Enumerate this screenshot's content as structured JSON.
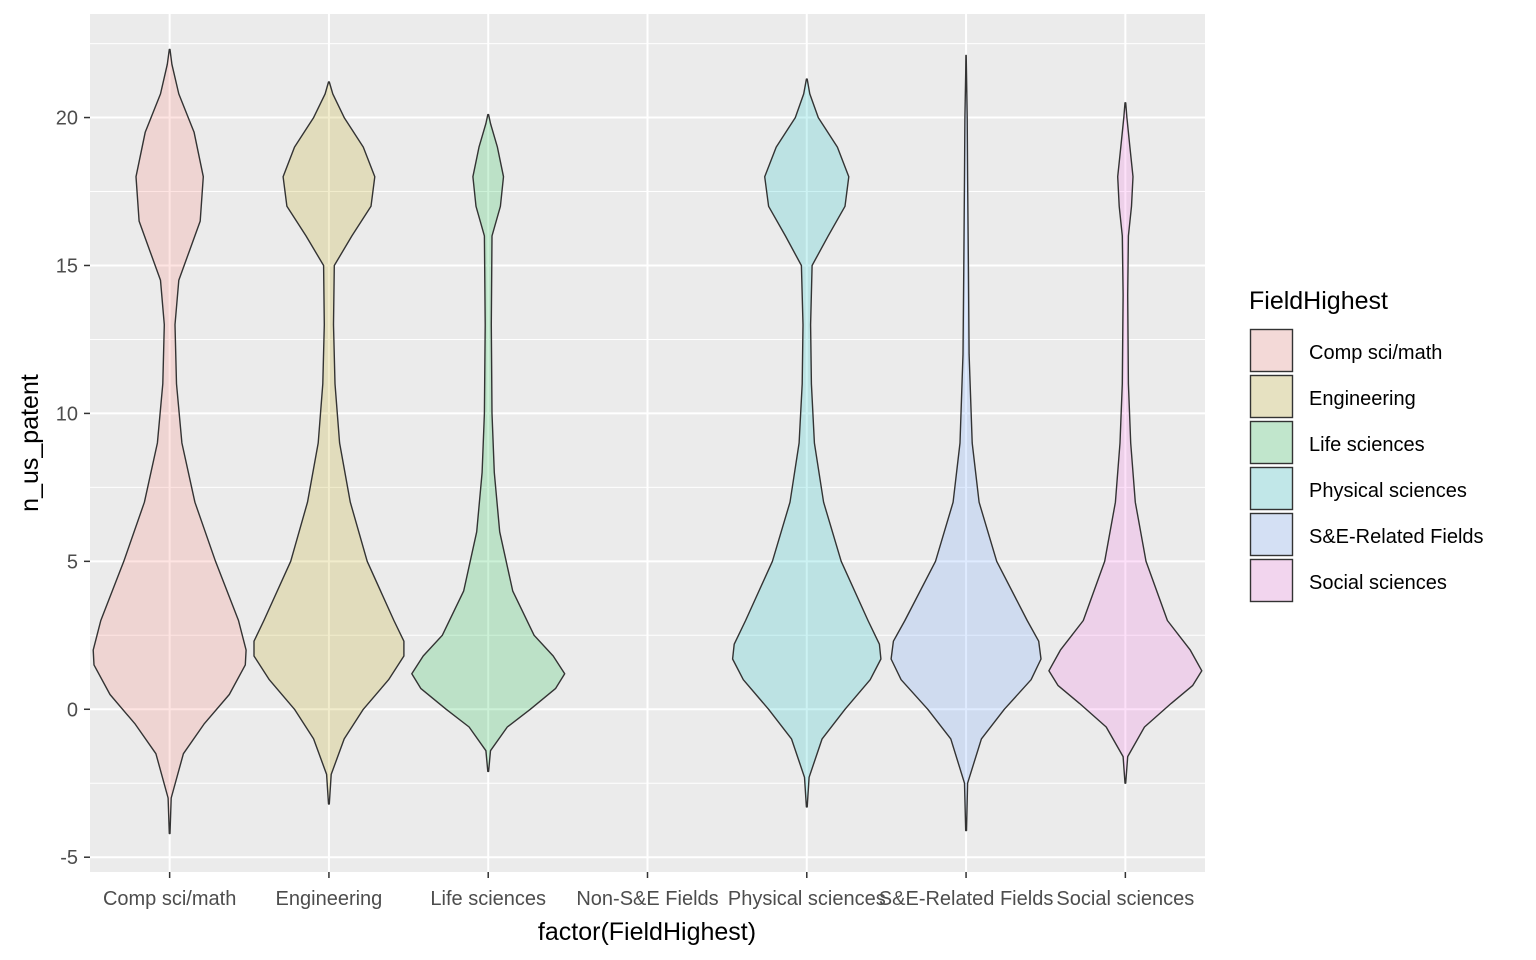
{
  "chart_data": {
    "type": "violin",
    "xlabel": "factor(FieldHighest)",
    "ylabel": "n_us_patent",
    "categories": [
      "Comp sci/math",
      "Engineering",
      "Life sciences",
      "Non-S&E Fields",
      "Physical sciences",
      "S&E-Related Fields",
      "Social sciences"
    ],
    "y_ticks": [
      -5,
      0,
      5,
      10,
      15,
      20
    ],
    "ylim": [
      -5.5,
      23.5
    ],
    "grid": true,
    "legend": {
      "title": "FieldHighest",
      "placement": "right",
      "entries": [
        "Comp sci/math",
        "Engineering",
        "Life sciences",
        "Physical sciences",
        "S&E-Related Fields",
        "Social sciences"
      ]
    },
    "series": [
      {
        "category": "Comp sci/math",
        "color": "#F8766D",
        "range": [
          -4.2,
          22.3
        ],
        "density": [
          [
            -4.2,
            0.005
          ],
          [
            -3,
            0.02
          ],
          [
            -1.5,
            0.18
          ],
          [
            -0.5,
            0.45
          ],
          [
            0.5,
            0.78
          ],
          [
            1.5,
            0.99
          ],
          [
            2,
            1.0
          ],
          [
            3,
            0.9
          ],
          [
            5,
            0.6
          ],
          [
            7,
            0.33
          ],
          [
            9,
            0.16
          ],
          [
            11,
            0.09
          ],
          [
            13,
            0.07
          ],
          [
            14.5,
            0.12
          ],
          [
            15.5,
            0.26
          ],
          [
            16.5,
            0.4
          ],
          [
            18,
            0.44
          ],
          [
            19.5,
            0.32
          ],
          [
            20.8,
            0.12
          ],
          [
            21.8,
            0.03
          ],
          [
            22.3,
            0.005
          ]
        ]
      },
      {
        "category": "Engineering",
        "color": "#B79F00",
        "range": [
          -3.2,
          21.2
        ],
        "density": [
          [
            -3.2,
            0.005
          ],
          [
            -2.2,
            0.03
          ],
          [
            -1,
            0.2
          ],
          [
            0,
            0.45
          ],
          [
            1,
            0.78
          ],
          [
            1.8,
            0.98
          ],
          [
            2.3,
            0.98
          ],
          [
            3,
            0.85
          ],
          [
            5,
            0.5
          ],
          [
            7,
            0.28
          ],
          [
            9,
            0.14
          ],
          [
            11,
            0.08
          ],
          [
            13,
            0.06
          ],
          [
            15,
            0.07
          ],
          [
            16,
            0.3
          ],
          [
            17,
            0.55
          ],
          [
            18,
            0.6
          ],
          [
            19,
            0.45
          ],
          [
            20,
            0.2
          ],
          [
            20.8,
            0.05
          ],
          [
            21.2,
            0.005
          ]
        ]
      },
      {
        "category": "Life sciences",
        "color": "#00BA38",
        "range": [
          -2.1,
          20.1
        ],
        "density": [
          [
            -2.1,
            0.005
          ],
          [
            -1.4,
            0.03
          ],
          [
            -0.6,
            0.25
          ],
          [
            0,
            0.55
          ],
          [
            0.7,
            0.88
          ],
          [
            1.2,
            1.0
          ],
          [
            1.8,
            0.85
          ],
          [
            2.5,
            0.6
          ],
          [
            4,
            0.32
          ],
          [
            6,
            0.15
          ],
          [
            8,
            0.08
          ],
          [
            10,
            0.05
          ],
          [
            13,
            0.04
          ],
          [
            16,
            0.05
          ],
          [
            17,
            0.16
          ],
          [
            18,
            0.2
          ],
          [
            19,
            0.12
          ],
          [
            19.8,
            0.03
          ],
          [
            20.1,
            0.005
          ]
        ]
      },
      {
        "category": "Physical sciences",
        "color": "#00BFC4",
        "range": [
          -3.3,
          21.3
        ],
        "density": [
          [
            -3.3,
            0.005
          ],
          [
            -2.3,
            0.03
          ],
          [
            -1,
            0.2
          ],
          [
            0,
            0.5
          ],
          [
            1,
            0.83
          ],
          [
            1.7,
            0.97
          ],
          [
            2.2,
            0.95
          ],
          [
            3,
            0.8
          ],
          [
            5,
            0.45
          ],
          [
            7,
            0.22
          ],
          [
            9,
            0.1
          ],
          [
            11,
            0.06
          ],
          [
            13,
            0.05
          ],
          [
            15,
            0.07
          ],
          [
            16,
            0.28
          ],
          [
            17,
            0.5
          ],
          [
            18,
            0.55
          ],
          [
            19,
            0.4
          ],
          [
            20,
            0.15
          ],
          [
            20.8,
            0.04
          ],
          [
            21.3,
            0.005
          ]
        ]
      },
      {
        "category": "S&E-Related Fields",
        "color": "#619CFF",
        "range": [
          -4.1,
          22.1
        ],
        "density": [
          [
            -4.1,
            0.005
          ],
          [
            -2.5,
            0.02
          ],
          [
            -1,
            0.2
          ],
          [
            0,
            0.5
          ],
          [
            1,
            0.85
          ],
          [
            1.7,
            0.98
          ],
          [
            2.3,
            0.95
          ],
          [
            3,
            0.8
          ],
          [
            5,
            0.4
          ],
          [
            7,
            0.17
          ],
          [
            9,
            0.08
          ],
          [
            12,
            0.04
          ],
          [
            15,
            0.03
          ],
          [
            18,
            0.02
          ],
          [
            20,
            0.015
          ],
          [
            21.5,
            0.005
          ],
          [
            22.1,
            0.002
          ]
        ]
      },
      {
        "category": "Social sciences",
        "color": "#F564E3",
        "range": [
          -2.5,
          20.5
        ],
        "density": [
          [
            -2.5,
            0.005
          ],
          [
            -1.6,
            0.03
          ],
          [
            -0.6,
            0.25
          ],
          [
            0.2,
            0.6
          ],
          [
            0.8,
            0.88
          ],
          [
            1.3,
            1.0
          ],
          [
            2,
            0.85
          ],
          [
            3,
            0.55
          ],
          [
            5,
            0.27
          ],
          [
            7,
            0.13
          ],
          [
            9,
            0.07
          ],
          [
            11,
            0.04
          ],
          [
            14,
            0.03
          ],
          [
            16,
            0.04
          ],
          [
            17,
            0.08
          ],
          [
            18,
            0.1
          ],
          [
            19,
            0.06
          ],
          [
            20,
            0.02
          ],
          [
            20.5,
            0.005
          ]
        ]
      }
    ]
  }
}
